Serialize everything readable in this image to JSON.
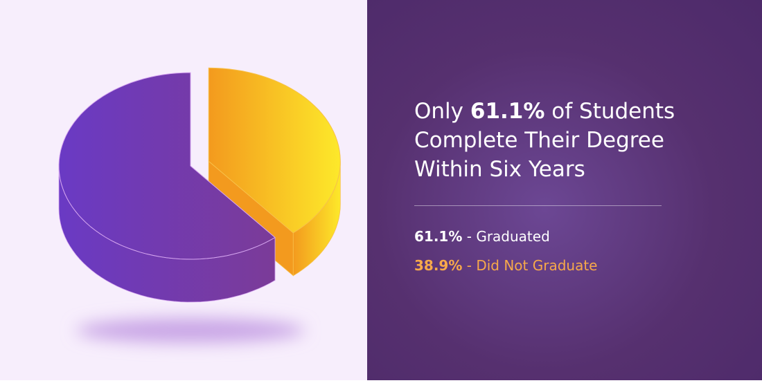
{
  "chart_data": {
    "type": "pie",
    "title": {
      "before": "Only ",
      "emphasis": "61.1%",
      "after": " of Students Complete Their Degree Within Six Years"
    },
    "categories": [
      "Graduated",
      "Did Not Graduate"
    ],
    "values": [
      61.1,
      38.9
    ],
    "value_labels": [
      "61.1%",
      "38.9%"
    ],
    "separator": "-",
    "colors": [
      [
        "#6a3ac4",
        "#7b3b98"
      ],
      [
        "#f39a1e",
        "#fde92a"
      ]
    ],
    "label_colors": [
      "#ffffff",
      "#f7a94a"
    ],
    "exploded": [
      false,
      true
    ]
  }
}
